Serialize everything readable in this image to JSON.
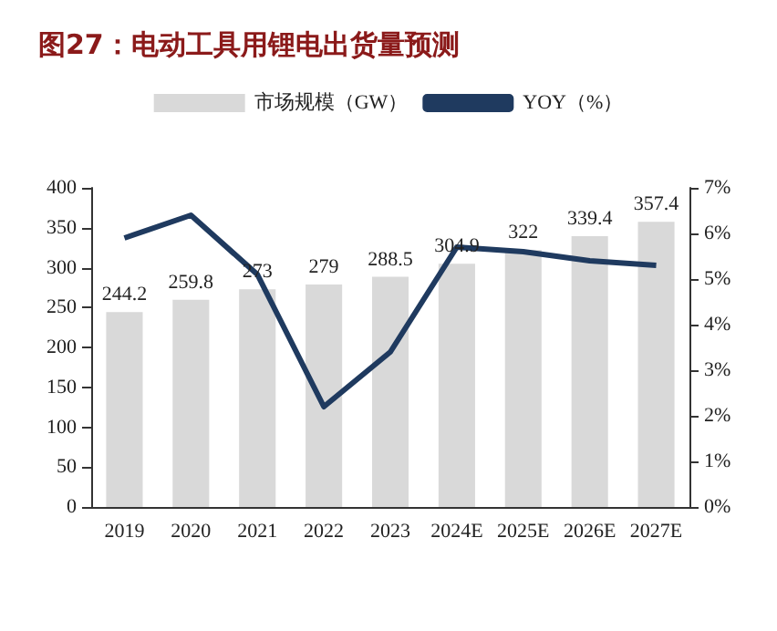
{
  "chart_data": {
    "type": "bar",
    "title": "图27：电动工具用锂电出货量预测",
    "categories": [
      "2019",
      "2020",
      "2021",
      "2022",
      "2023",
      "2024E",
      "2025E",
      "2026E",
      "2027E"
    ],
    "series": [
      {
        "name": "市场规模（GW）",
        "color": "#d9d9d9",
        "values": [
          244.2,
          259.8,
          273,
          279,
          288.5,
          304.9,
          322,
          339.4,
          357.4
        ],
        "value_labels": [
          "244.2",
          "259.8",
          "273",
          "279",
          "288.5",
          "304.9",
          "322",
          "339.4",
          "357.4"
        ]
      },
      {
        "name": "YOY（%）",
        "type": "line",
        "axis": "y2",
        "color": "#1f3a5f",
        "values": [
          5.9,
          6.4,
          5.1,
          2.2,
          3.4,
          5.7,
          5.6,
          5.4,
          5.3
        ]
      }
    ],
    "ylim": [
      0,
      400
    ],
    "yticks": [
      0,
      50,
      100,
      150,
      200,
      250,
      300,
      350,
      400
    ],
    "y2lim": [
      0,
      7
    ],
    "y2ticks": [
      {
        "value": 0,
        "label": "0%"
      },
      {
        "value": 1,
        "label": "1%"
      },
      {
        "value": 2,
        "label": "2%"
      },
      {
        "value": 3,
        "label": "3%"
      },
      {
        "value": 4,
        "label": "4%"
      },
      {
        "value": 5,
        "label": "5%"
      },
      {
        "value": 6,
        "label": "6%"
      },
      {
        "value": 7,
        "label": "7%"
      }
    ],
    "grid": false,
    "legend": "top",
    "marker": "none",
    "line_style": "solid"
  }
}
